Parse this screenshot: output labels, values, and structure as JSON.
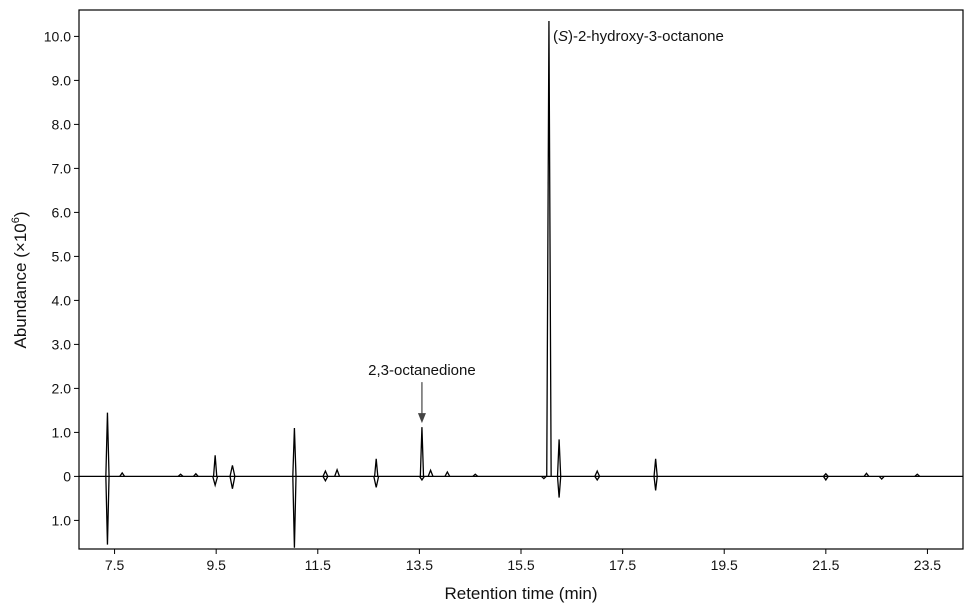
{
  "chart_data": {
    "type": "line",
    "title": "",
    "xlabel": "Retention time (min)",
    "ylabel": "Abundance (×10",
    "ylabel_sup": "6",
    "ylabel_close": ")",
    "xlim": [
      6.8,
      24.2
    ],
    "ylim": [
      -1.65,
      10.6
    ],
    "x_ticks": [
      7.5,
      9.5,
      11.5,
      13.5,
      15.5,
      17.5,
      19.5,
      21.5,
      23.5
    ],
    "x_tick_labels": [
      "7.5",
      "9.5",
      "11.5",
      "13.5",
      "15.5",
      "17.5",
      "19.5",
      "21.5",
      "23.5"
    ],
    "y_ticks": [
      -1.0,
      0,
      1.0,
      2.0,
      3.0,
      4.0,
      5.0,
      6.0,
      7.0,
      8.0,
      9.0,
      10.0
    ],
    "y_tick_labels": [
      "1.0",
      "0",
      "1.0",
      "2.0",
      "3.0",
      "4.0",
      "5.0",
      "6.0",
      "7.0",
      "8.0",
      "9.0",
      "10.0"
    ],
    "grid": false,
    "series": [
      {
        "direction": "up",
        "peaks": [
          {
            "x": 7.36,
            "y": 1.45
          },
          {
            "x": 7.65,
            "y": 0.08
          },
          {
            "x": 8.8,
            "y": 0.05
          },
          {
            "x": 9.1,
            "y": 0.06
          },
          {
            "x": 9.48,
            "y": 0.48
          },
          {
            "x": 9.82,
            "y": 0.25
          },
          {
            "x": 11.04,
            "y": 1.1
          },
          {
            "x": 11.65,
            "y": 0.12
          },
          {
            "x": 11.88,
            "y": 0.15
          },
          {
            "x": 12.65,
            "y": 0.4
          },
          {
            "x": 13.55,
            "y": 1.12
          },
          {
            "x": 13.72,
            "y": 0.14
          },
          {
            "x": 14.05,
            "y": 0.1
          },
          {
            "x": 14.6,
            "y": 0.05
          },
          {
            "x": 16.05,
            "y": 10.35
          },
          {
            "x": 16.25,
            "y": 0.84
          },
          {
            "x": 17.0,
            "y": 0.12
          },
          {
            "x": 18.15,
            "y": 0.4
          },
          {
            "x": 21.5,
            "y": 0.06
          },
          {
            "x": 22.3,
            "y": 0.07
          },
          {
            "x": 23.3,
            "y": 0.05
          }
        ]
      },
      {
        "direction": "down",
        "peaks": [
          {
            "x": 7.36,
            "y": -1.55
          },
          {
            "x": 9.48,
            "y": -0.2
          },
          {
            "x": 9.82,
            "y": -0.28
          },
          {
            "x": 11.04,
            "y": -1.62
          },
          {
            "x": 11.65,
            "y": -0.1
          },
          {
            "x": 12.65,
            "y": -0.25
          },
          {
            "x": 13.55,
            "y": -0.08
          },
          {
            "x": 15.95,
            "y": -0.05
          },
          {
            "x": 16.25,
            "y": -0.48
          },
          {
            "x": 17.0,
            "y": -0.08
          },
          {
            "x": 18.15,
            "y": -0.32
          },
          {
            "x": 21.5,
            "y": -0.08
          },
          {
            "x": 22.6,
            "y": -0.06
          }
        ]
      }
    ],
    "annotations": [
      {
        "text_prefix": "(",
        "text_italic": "S",
        "text_suffix": ")-2-hydroxy-3-octanone",
        "x": 16.05,
        "y": 10.35,
        "arrow": false
      },
      {
        "text": "2,3-octanedione",
        "x": 13.55,
        "y": 1.12,
        "arrow": true
      }
    ]
  }
}
